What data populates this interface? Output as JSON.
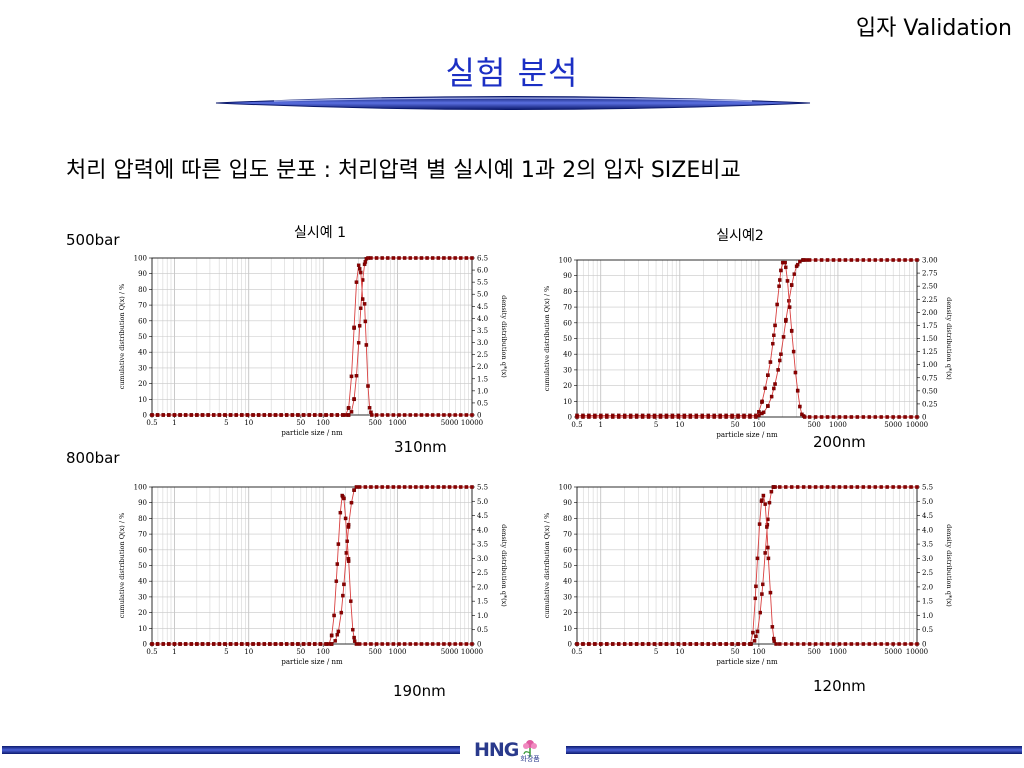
{
  "slide": {
    "header_tag": "입자 Validation",
    "title": "실험 분석",
    "subtitle": "처리 압력에 따른 입도 분포 : 처리압력 별 실시예 1과 2의 입자 SIZE비교",
    "row_labels": [
      "500bar",
      "800bar"
    ],
    "column_titles": [
      "실시예 1",
      "실시예2"
    ],
    "footer_logo": "HNG",
    "footer_logo_sub": "화장품",
    "accent_color": "#1b2fc4",
    "line_color": "#1a2f9c"
  },
  "chart_data": [
    {
      "type": "line",
      "title": "실시예 1",
      "pressure": "500bar",
      "size_label": "310nm",
      "xlabel": "particle size / nm",
      "ylabel_left": "cumulative distribution Q(x) / %",
      "ylabel_right": "density distribution q*(x)",
      "x_scale": "log",
      "xlim": [
        0.5,
        10000
      ],
      "x_ticks": [
        "0.5",
        "1",
        "5",
        "10",
        "50",
        "100",
        "500",
        "1000",
        "5000",
        "10000"
      ],
      "ylim_left": [
        0,
        100
      ],
      "left_ticks": [
        "0",
        "10",
        "20",
        "30",
        "40",
        "50",
        "60",
        "70",
        "80",
        "90",
        "100"
      ],
      "ylim_right": [
        0,
        6.5
      ],
      "right_ticks": [
        "0",
        "0.5",
        "1.0",
        "1.5",
        "2.0",
        "2.5",
        "3.0",
        "3.5",
        "4.0",
        "4.5",
        "5.0",
        "5.5",
        "6.0",
        "6.5"
      ],
      "grid": true,
      "series": [
        {
          "axis": "left",
          "kind": "cumulative",
          "x": [
            220,
            240,
            260,
            280,
            300,
            320,
            340,
            360,
            380,
            400
          ],
          "y": [
            0,
            2,
            10,
            25,
            46,
            68,
            86,
            96,
            99.5,
            100
          ]
        },
        {
          "axis": "right",
          "kind": "density",
          "x": [
            200,
            220,
            240,
            260,
            280,
            300,
            320,
            340,
            360,
            380,
            400,
            420,
            450
          ],
          "y": [
            0,
            0.3,
            1.6,
            3.6,
            5.5,
            6.2,
            5.9,
            4.8,
            4.6,
            2.9,
            1.2,
            0.3,
            0
          ]
        }
      ]
    },
    {
      "type": "line",
      "title": "실시예2",
      "pressure": "500bar",
      "size_label": "200nm",
      "xlabel": "particle size / nm",
      "ylabel_left": "cumulative distribution Q(x) / %",
      "ylabel_right": "density distribution q*(x)",
      "x_scale": "log",
      "xlim": [
        0.5,
        10000
      ],
      "x_ticks": [
        "0.5",
        "1",
        "5",
        "10",
        "50",
        "100",
        "500",
        "1000",
        "5000",
        "10000"
      ],
      "ylim_left": [
        0,
        100
      ],
      "left_ticks": [
        "0",
        "10",
        "20",
        "30",
        "40",
        "50",
        "60",
        "70",
        "80",
        "90",
        "100"
      ],
      "ylim_right": [
        0,
        3.0
      ],
      "right_ticks": [
        "0",
        "0.25",
        "0.50",
        "0.75",
        "1.00",
        "1.25",
        "1.50",
        "1.75",
        "2.00",
        "2.25",
        "2.50",
        "2.75",
        "3.00"
      ],
      "grid": true,
      "series": [
        {
          "axis": "left",
          "kind": "cumulative",
          "x": [
            100,
            115,
            130,
            145,
            160,
            175,
            190,
            205,
            220,
            240,
            260,
            280,
            300,
            330,
            360,
            400
          ],
          "y": [
            1,
            3,
            7,
            13,
            21,
            30,
            40,
            51,
            62,
            74,
            84,
            91,
            96,
            99,
            100,
            100
          ]
        },
        {
          "axis": "right",
          "kind": "density",
          "x": [
            100,
            110,
            120,
            130,
            140,
            150,
            160,
            170,
            180,
            190,
            200,
            215,
            230,
            245,
            260,
            275,
            290,
            310,
            330,
            350,
            380
          ],
          "y": [
            0.1,
            0.3,
            0.55,
            0.8,
            1.05,
            1.4,
            1.75,
            2.15,
            2.5,
            2.8,
            2.95,
            2.95,
            2.6,
            2.1,
            1.65,
            1.25,
            0.85,
            0.5,
            0.2,
            0.05,
            0
          ]
        }
      ]
    },
    {
      "type": "line",
      "title": "",
      "pressure": "800bar",
      "size_label": "190nm",
      "xlabel": "particle size / nm",
      "ylabel_left": "cumulative distribution Q(x) / %",
      "ylabel_right": "density distribution q*(x)",
      "x_scale": "log",
      "xlim": [
        0.5,
        10000
      ],
      "x_ticks": [
        "0.5",
        "1",
        "5",
        "10",
        "50",
        "100",
        "500",
        "1000",
        "5000",
        "10000"
      ],
      "ylim_left": [
        0,
        100
      ],
      "left_ticks": [
        "0",
        "10",
        "20",
        "30",
        "40",
        "50",
        "60",
        "70",
        "80",
        "90",
        "100"
      ],
      "ylim_right": [
        0,
        5.5
      ],
      "right_ticks": [
        "0",
        "0.5",
        "1.0",
        "1.5",
        "2.0",
        "2.5",
        "3.0",
        "3.5",
        "4.0",
        "4.5",
        "5.0",
        "5.5"
      ],
      "grid": true,
      "series": [
        {
          "axis": "left",
          "kind": "cumulative",
          "x": [
            130,
            145,
            160,
            175,
            190,
            205,
            220,
            240,
            260,
            280
          ],
          "y": [
            0,
            2,
            8,
            20,
            38,
            58,
            76,
            90,
            98,
            100
          ]
        },
        {
          "axis": "right",
          "kind": "density",
          "x": [
            120,
            130,
            140,
            150,
            160,
            170,
            180,
            190,
            200,
            210,
            220,
            235,
            250,
            265,
            280
          ],
          "y": [
            0,
            0.3,
            1.0,
            2.2,
            3.5,
            4.6,
            5.2,
            5.1,
            4.4,
            3.6,
            2.9,
            1.5,
            0.5,
            0.1,
            0
          ]
        }
      ]
    },
    {
      "type": "line",
      "title": "",
      "pressure": "800bar",
      "size_label": "120nm",
      "xlabel": "particle size / nm",
      "ylabel_left": "cumulative distribution Q(x) / %",
      "ylabel_right": "density distribution q*(x)",
      "x_scale": "log",
      "xlim": [
        0.5,
        10000
      ],
      "x_ticks": [
        "0.5",
        "1",
        "5",
        "10",
        "50",
        "100",
        "500",
        "1000",
        "5000",
        "10000"
      ],
      "ylim_left": [
        0,
        100
      ],
      "left_ticks": [
        "0",
        "10",
        "20",
        "30",
        "40",
        "50",
        "60",
        "70",
        "80",
        "90",
        "100"
      ],
      "ylim_right": [
        0,
        5.5
      ],
      "right_ticks": [
        "0",
        "0.5",
        "1.0",
        "1.5",
        "2.0",
        "2.5",
        "3.0",
        "3.5",
        "4.0",
        "4.5",
        "5.0",
        "5.5"
      ],
      "grid": true,
      "series": [
        {
          "axis": "left",
          "kind": "cumulative",
          "x": [
            80,
            88,
            96,
            104,
            112,
            120,
            128,
            136,
            144,
            152,
            160
          ],
          "y": [
            0,
            2,
            8,
            20,
            38,
            58,
            76,
            90,
            97,
            100,
            100
          ]
        },
        {
          "axis": "right",
          "kind": "density",
          "x": [
            78,
            84,
            90,
            96,
            102,
            108,
            114,
            120,
            126,
            132,
            140,
            148,
            156,
            165
          ],
          "y": [
            0,
            0.4,
            1.6,
            3.0,
            4.2,
            5.0,
            5.2,
            4.9,
            4.1,
            3.0,
            1.8,
            0.6,
            0.1,
            0
          ]
        }
      ]
    }
  ]
}
